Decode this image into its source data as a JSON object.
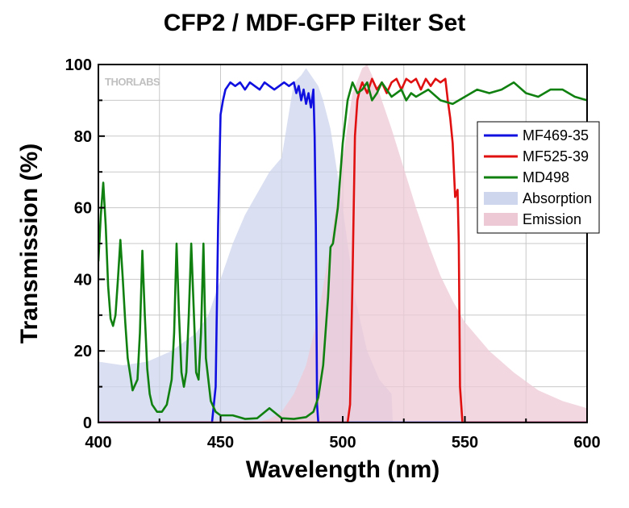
{
  "chart_data": {
    "type": "line",
    "title": "CFP2 / MDF-GFP Filter Set",
    "xlabel": "Wavelength (nm)",
    "ylabel": "Transmission (%)",
    "watermark": "THORLABS",
    "xlim": [
      400,
      600
    ],
    "ylim": [
      0,
      100
    ],
    "xticks": [
      400,
      450,
      500,
      550,
      600
    ],
    "yticks": [
      0,
      20,
      40,
      60,
      80,
      100
    ],
    "grid": true,
    "legend_position": "right",
    "series": [
      {
        "name": "MF469-35",
        "style": "line",
        "color": "#1010e0",
        "x": [
          400,
          446.5,
          448,
          449,
          450,
          451,
          452,
          454,
          456,
          458,
          460,
          462,
          464,
          466,
          468,
          470,
          472,
          474,
          476,
          478,
          480,
          481,
          482,
          483,
          484,
          485,
          486,
          487,
          488,
          488.5,
          489,
          489.5,
          490,
          600
        ],
        "y": [
          0,
          0,
          10,
          55,
          86,
          90,
          93,
          95,
          94,
          95,
          93,
          95,
          94,
          93,
          95,
          94,
          93,
          94,
          95,
          94,
          95,
          92,
          94,
          90,
          93,
          89,
          92,
          88,
          93,
          80,
          55,
          5,
          0,
          0
        ]
      },
      {
        "name": "MF525-39",
        "style": "line",
        "color": "#e01010",
        "x": [
          400,
          502,
          503,
          504,
          505,
          506,
          507,
          508,
          510,
          512,
          514,
          516,
          518,
          520,
          522,
          524,
          526,
          528,
          530,
          532,
          534,
          536,
          538,
          540,
          542,
          543,
          544,
          545,
          546,
          547,
          547.5,
          548,
          549,
          600
        ],
        "y": [
          0,
          0,
          5,
          40,
          80,
          90,
          93,
          95,
          92,
          96,
          93,
          95,
          92,
          95,
          96,
          93,
          96,
          95,
          96,
          93,
          96,
          94,
          96,
          95,
          96,
          90,
          85,
          78,
          63,
          65,
          50,
          10,
          0,
          0
        ]
      },
      {
        "name": "MD498",
        "style": "line",
        "color": "#108010",
        "x": [
          400,
          401,
          402,
          403,
          404,
          405,
          406,
          407,
          408,
          409,
          410,
          411,
          412,
          414,
          416,
          417,
          418,
          419,
          420,
          421,
          422,
          424,
          426,
          428,
          430,
          431,
          432,
          433,
          434,
          435,
          436,
          437,
          438,
          439,
          440,
          441,
          442,
          443,
          444,
          446,
          448,
          450,
          455,
          460,
          465,
          470,
          475,
          480,
          485,
          488,
          490,
          492,
          494,
          495,
          496,
          498,
          500,
          502,
          504,
          506,
          508,
          510,
          512,
          514,
          516,
          518,
          520,
          522,
          524,
          526,
          528,
          530,
          535,
          540,
          545,
          550,
          555,
          560,
          565,
          570,
          575,
          580,
          585,
          590,
          595,
          600
        ],
        "y": [
          45,
          58,
          67,
          55,
          38,
          29,
          27,
          30,
          40,
          51,
          40,
          28,
          18,
          9,
          12,
          25,
          48,
          30,
          15,
          8,
          5,
          3,
          3,
          5,
          12,
          25,
          50,
          30,
          14,
          10,
          14,
          30,
          50,
          32,
          14,
          12,
          25,
          50,
          18,
          6,
          3,
          2,
          2,
          1,
          1.2,
          4,
          1.2,
          1,
          1.5,
          3,
          7,
          16,
          35,
          49,
          50,
          60,
          78,
          90,
          95,
          92,
          93,
          95,
          90,
          92,
          95,
          93,
          91,
          92,
          93,
          90,
          92,
          91,
          93,
          90,
          89,
          91,
          93,
          92,
          93,
          95,
          92,
          91,
          93,
          93,
          91,
          90
        ]
      },
      {
        "name": "Absorption",
        "style": "area",
        "color": "#cdd6ec",
        "x": [
          400,
          410,
          420,
          430,
          440,
          445,
          450,
          455,
          460,
          465,
          470,
          475,
          480,
          483,
          485,
          487,
          490,
          492,
          495,
          500,
          505,
          510,
          515,
          520,
          520.5
        ],
        "y": [
          17,
          16,
          17,
          20,
          25,
          30,
          40,
          50,
          58,
          64,
          70,
          74,
          95,
          97,
          99,
          97,
          94,
          90,
          82,
          60,
          35,
          20,
          12,
          8,
          0
        ]
      },
      {
        "name": "Emission",
        "style": "area",
        "color": "#edc9d6",
        "x": [
          400,
          465,
          470,
          475,
          480,
          485,
          490,
          495,
          500,
          504,
          508,
          510,
          512,
          515,
          520,
          525,
          530,
          535,
          540,
          545,
          550,
          560,
          570,
          580,
          590,
          600
        ],
        "y": [
          0,
          0,
          1,
          3,
          8,
          16,
          30,
          50,
          74,
          92,
          99,
          100,
          97,
          92,
          82,
          71,
          60,
          50,
          41,
          34,
          28,
          20,
          14,
          9,
          6,
          4
        ]
      }
    ]
  }
}
